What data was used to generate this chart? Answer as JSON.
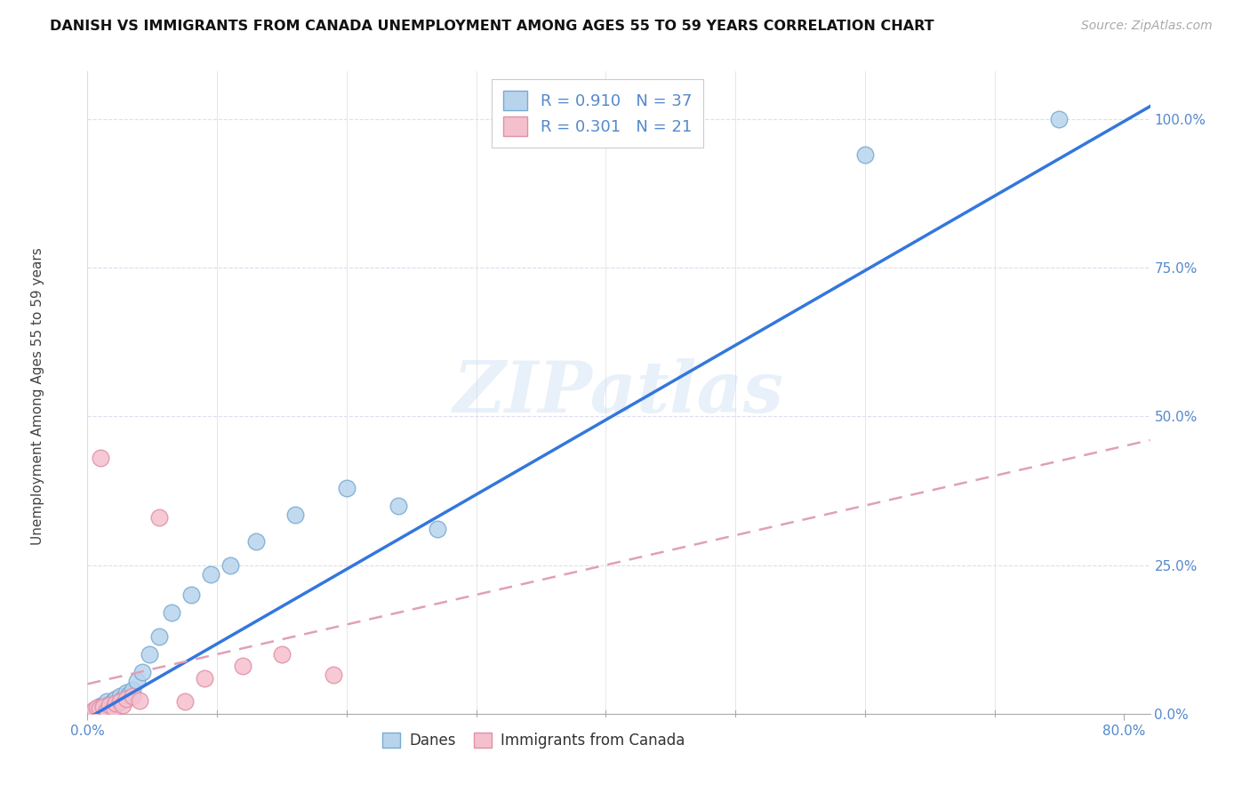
{
  "title": "DANISH VS IMMIGRANTS FROM CANADA UNEMPLOYMENT AMONG AGES 55 TO 59 YEARS CORRELATION CHART",
  "source": "Source: ZipAtlas.com",
  "ylabel": "Unemployment Among Ages 55 to 59 years",
  "xlim": [
    0.0,
    0.82
  ],
  "ylim": [
    0.0,
    1.08
  ],
  "x_tick_positions": [
    0.0,
    0.8
  ],
  "x_tick_labels": [
    "0.0%",
    "80.0%"
  ],
  "y_tick_positions": [
    0.0,
    0.25,
    0.5,
    0.75,
    1.0
  ],
  "y_tick_labels": [
    "0.0%",
    "25.0%",
    "50.0%",
    "75.0%",
    "100.0%"
  ],
  "danes_color": "#b8d4ed",
  "danes_edge_color": "#7aaad0",
  "immigrants_color": "#f5c0ce",
  "immigrants_edge_color": "#e090a8",
  "danes_line_color": "#3377dd",
  "immigrants_line_color": "#e0a0b8",
  "danes_R": 0.91,
  "danes_N": 37,
  "immigrants_R": 0.301,
  "immigrants_N": 21,
  "watermark": "ZIPatlas",
  "tick_color": "#5588cc",
  "legend_text_color": "#333333",
  "danes_x": [
    0.003,
    0.005,
    0.007,
    0.008,
    0.009,
    0.01,
    0.01,
    0.012,
    0.013,
    0.015,
    0.015,
    0.017,
    0.018,
    0.02,
    0.02,
    0.022,
    0.025,
    0.025,
    0.027,
    0.03,
    0.032,
    0.035,
    0.038,
    0.042,
    0.048,
    0.055,
    0.065,
    0.08,
    0.095,
    0.11,
    0.13,
    0.16,
    0.2,
    0.24,
    0.27,
    0.6,
    0.75
  ],
  "danes_y": [
    0.003,
    0.005,
    0.008,
    0.01,
    0.007,
    0.005,
    0.013,
    0.01,
    0.015,
    0.008,
    0.02,
    0.015,
    0.018,
    0.012,
    0.022,
    0.025,
    0.02,
    0.03,
    0.025,
    0.035,
    0.032,
    0.04,
    0.055,
    0.07,
    0.1,
    0.13,
    0.17,
    0.2,
    0.235,
    0.25,
    0.29,
    0.335,
    0.38,
    0.35,
    0.31,
    0.94,
    1.0
  ],
  "immigrants_x": [
    0.003,
    0.005,
    0.007,
    0.009,
    0.01,
    0.012,
    0.015,
    0.017,
    0.02,
    0.022,
    0.025,
    0.027,
    0.03,
    0.035,
    0.04,
    0.055,
    0.075,
    0.09,
    0.12,
    0.15,
    0.19
  ],
  "immigrants_y": [
    0.003,
    0.007,
    0.01,
    0.008,
    0.43,
    0.012,
    0.005,
    0.015,
    0.01,
    0.018,
    0.02,
    0.015,
    0.025,
    0.03,
    0.022,
    0.33,
    0.02,
    0.06,
    0.08,
    0.1,
    0.065
  ]
}
